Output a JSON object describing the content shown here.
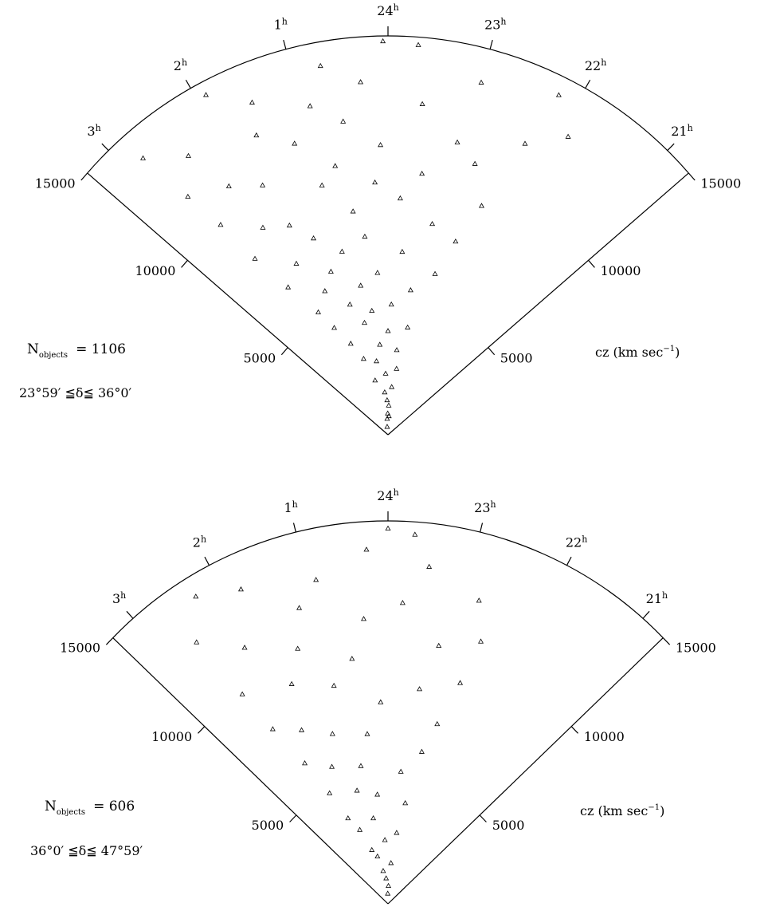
{
  "chart_data": [
    {
      "type": "scatter",
      "projection": "redshift wedge (right ascension vs cz)",
      "n_label": "N",
      "n_sub": "objects",
      "n_value": "= 1106",
      "dec_range": "23°59′ ≦δ≦ 36°0′",
      "radial_axis": {
        "unit_label": "cz (km sec",
        "unit_sup": "−1",
        "unit_close": ")",
        "range": [
          0,
          15000
        ],
        "ticks": [
          5000,
          10000,
          15000
        ],
        "tick_labels": [
          "5000",
          "10000",
          "15000"
        ]
      },
      "ra_axis": {
        "range_hours": [
          20.7,
          3.3
        ],
        "ticks_hours": [
          3,
          2,
          1,
          24,
          23,
          22,
          21
        ],
        "tick_labels": [
          {
            "num": "3",
            "sup": "h"
          },
          {
            "num": "2",
            "sup": "h"
          },
          {
            "num": "1",
            "sup": "h"
          },
          {
            "num": "24",
            "sup": "h"
          },
          {
            "num": "23",
            "sup": "h"
          },
          {
            "num": "22",
            "sup": "h"
          },
          {
            "num": "21",
            "sup": "h"
          }
        ]
      },
      "marker": "triangle",
      "approx_points": [
        [
          0.4,
          300
        ],
        [
          0.2,
          600
        ],
        [
          23.8,
          700
        ],
        [
          0.05,
          800
        ],
        [
          23.9,
          1100
        ],
        [
          0.1,
          1300
        ],
        [
          0.3,
          1600
        ],
        [
          23.7,
          1800
        ],
        [
          0.9,
          2100
        ],
        [
          0.15,
          2300
        ],
        [
          23.5,
          2500
        ],
        [
          0.6,
          2800
        ],
        [
          1.2,
          3000
        ],
        [
          23.6,
          3200
        ],
        [
          0.35,
          3400
        ],
        [
          1.5,
          3700
        ],
        [
          0.0,
          3900
        ],
        [
          23.3,
          4100
        ],
        [
          0.8,
          4300
        ],
        [
          1.8,
          4500
        ],
        [
          0.5,
          4700
        ],
        [
          23.9,
          4900
        ],
        [
          1.1,
          5100
        ],
        [
          2.0,
          5300
        ],
        [
          23.4,
          5500
        ],
        [
          0.7,
          5700
        ],
        [
          1.6,
          5900
        ],
        [
          0.25,
          6100
        ],
        [
          22.9,
          6300
        ],
        [
          1.3,
          6500
        ],
        [
          2.3,
          6700
        ],
        [
          23.7,
          6900
        ],
        [
          0.95,
          7100
        ],
        [
          1.9,
          7300
        ],
        [
          0.45,
          7500
        ],
        [
          22.7,
          7700
        ],
        [
          1.4,
          7900
        ],
        [
          23.2,
          8100
        ],
        [
          2.5,
          8300
        ],
        [
          0.6,
          8500
        ],
        [
          1.7,
          8700
        ],
        [
          23.8,
          8900
        ],
        [
          2.1,
          9100
        ],
        [
          22.5,
          9300
        ],
        [
          0.2,
          9500
        ],
        [
          1.0,
          9700
        ],
        [
          23.5,
          9900
        ],
        [
          2.6,
          10100
        ],
        [
          0.75,
          10300
        ],
        [
          1.8,
          10500
        ],
        [
          22.8,
          10700
        ],
        [
          0.1,
          10900
        ],
        [
          2.2,
          11100
        ],
        [
          23.1,
          11300
        ],
        [
          1.2,
          11500
        ],
        [
          2.7,
          11700
        ],
        [
          0.55,
          11900
        ],
        [
          22.3,
          12100
        ],
        [
          1.6,
          12300
        ],
        [
          23.6,
          12500
        ],
        [
          0.9,
          12700
        ],
        [
          2.4,
          12900
        ],
        [
          21.9,
          13100
        ],
        [
          0.3,
          13300
        ],
        [
          1.5,
          13500
        ],
        [
          23.0,
          13700
        ],
        [
          2.8,
          13900
        ],
        [
          0.7,
          14100
        ],
        [
          22.2,
          14300
        ],
        [
          1.9,
          14500
        ],
        [
          23.7,
          14700
        ],
        [
          0.05,
          14800
        ]
      ]
    },
    {
      "type": "scatter",
      "projection": "redshift wedge (right ascension vs cz)",
      "n_label": "N",
      "n_sub": "objects",
      "n_value": "= 606",
      "dec_range": "36°0′ ≦δ≦ 47°59′",
      "radial_axis": {
        "unit_label": "cz (km sec",
        "unit_sup": "−1",
        "unit_close": ")",
        "range": [
          0,
          15000
        ],
        "ticks": [
          5000,
          10000,
          15000
        ],
        "tick_labels": [
          "5000",
          "10000",
          "15000"
        ]
      },
      "ra_axis": {
        "range_hours": [
          20.7,
          3.3
        ],
        "ticks_hours": [
          3,
          2,
          1,
          24,
          23,
          22,
          21
        ],
        "tick_labels": [
          {
            "num": "3",
            "sup": "h"
          },
          {
            "num": "2",
            "sup": "h"
          },
          {
            "num": "1",
            "sup": "h"
          },
          {
            "num": "24",
            "sup": "h"
          },
          {
            "num": "23",
            "sup": "h"
          },
          {
            "num": "22",
            "sup": "h"
          },
          {
            "num": "21",
            "sup": "h"
          }
        ]
      },
      "marker": "triangle",
      "approx_points": [
        [
          0.1,
          400
        ],
        [
          23.9,
          700
        ],
        [
          0.3,
          1000
        ],
        [
          0.6,
          1300
        ],
        [
          23.7,
          1600
        ],
        [
          0.9,
          1900
        ],
        [
          1.2,
          2200
        ],
        [
          0.2,
          2500
        ],
        [
          23.5,
          2800
        ],
        [
          1.5,
          3100
        ],
        [
          0.7,
          3400
        ],
        [
          1.8,
          3700
        ],
        [
          23.3,
          4000
        ],
        [
          0.4,
          4300
        ],
        [
          1.1,
          4600
        ],
        [
          2.0,
          4900
        ],
        [
          23.6,
          5200
        ],
        [
          0.8,
          5500
        ],
        [
          1.6,
          5800
        ],
        [
          23.1,
          6100
        ],
        [
          2.2,
          6400
        ],
        [
          0.5,
          6700
        ],
        [
          1.3,
          7000
        ],
        [
          22.9,
          7300
        ],
        [
          1.9,
          7600
        ],
        [
          0.15,
          7900
        ],
        [
          2.4,
          8200
        ],
        [
          23.4,
          8500
        ],
        [
          1.0,
          8800
        ],
        [
          22.7,
          9100
        ],
        [
          1.7,
          9400
        ],
        [
          0.6,
          9700
        ],
        [
          2.5,
          10000
        ],
        [
          23.2,
          10300
        ],
        [
          1.4,
          10600
        ],
        [
          22.6,
          10900
        ],
        [
          0.35,
          11200
        ],
        [
          2.1,
          11500
        ],
        [
          23.8,
          11800
        ],
        [
          1.2,
          12100
        ],
        [
          22.8,
          12400
        ],
        [
          2.6,
          12700
        ],
        [
          0.9,
          13000
        ],
        [
          23.5,
          13300
        ],
        [
          1.8,
          13600
        ],
        [
          0.25,
          13900
        ],
        [
          2.3,
          14200
        ],
        [
          23.7,
          14500
        ],
        [
          0.0,
          14700
        ]
      ]
    }
  ]
}
